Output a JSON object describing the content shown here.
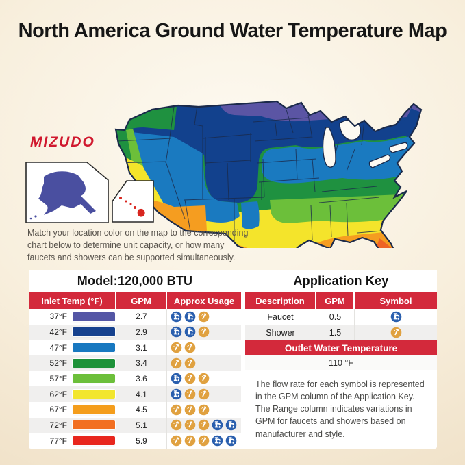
{
  "title": "North America Ground Water Temperature Map",
  "brand": {
    "name": "MIZUDO",
    "color": "#d0182e"
  },
  "map": {
    "caption": "Match your location color on the map to the corresponding chart below to determine unit capacity, or how many faucets and showers can be supported simultaneously.",
    "band_colors": [
      "#5b55a4",
      "#12418d",
      "#1a7ac0",
      "#1f9140",
      "#6cbf3a",
      "#f4e42b",
      "#f59d20",
      "#e8311f"
    ],
    "inset_alaska_color": "#4a4fa0",
    "inset_hawaii_color": "#d8261f"
  },
  "capacity_table": {
    "title": "Model:120,000 BTU",
    "headers": [
      "Inlet Temp (°F)",
      "GPM",
      "Approx Usage"
    ],
    "rows": [
      {
        "inlet_temp": "37°F",
        "swatch_color": "#5456a5",
        "gpm": "2.7",
        "usage": [
          "faucet",
          "faucet",
          "shower"
        ]
      },
      {
        "inlet_temp": "42°F",
        "swatch_color": "#16418e",
        "gpm": "2.9",
        "usage": [
          "faucet",
          "faucet",
          "shower"
        ]
      },
      {
        "inlet_temp": "47°F",
        "swatch_color": "#1878c0",
        "gpm": "3.1",
        "usage": [
          "shower",
          "shower"
        ]
      },
      {
        "inlet_temp": "52°F",
        "swatch_color": "#1e9239",
        "gpm": "3.4",
        "usage": [
          "shower",
          "shower"
        ]
      },
      {
        "inlet_temp": "57°F",
        "swatch_color": "#6cbf3a",
        "gpm": "3.6",
        "usage": [
          "faucet",
          "shower",
          "shower"
        ]
      },
      {
        "inlet_temp": "62°F",
        "swatch_color": "#f2e62e",
        "gpm": "4.1",
        "usage": [
          "faucet",
          "shower",
          "shower"
        ]
      },
      {
        "inlet_temp": "67°F",
        "swatch_color": "#f49d1c",
        "gpm": "4.5",
        "usage": [
          "shower",
          "shower",
          "shower"
        ]
      },
      {
        "inlet_temp": "72°F",
        "swatch_color": "#f26f21",
        "gpm": "5.1",
        "usage": [
          "shower",
          "shower",
          "shower",
          "faucet",
          "faucet"
        ]
      },
      {
        "inlet_temp": "77°F",
        "swatch_color": "#e8261d",
        "gpm": "5.9",
        "usage": [
          "shower",
          "shower",
          "shower",
          "faucet",
          "faucet"
        ]
      }
    ]
  },
  "application_key": {
    "title": "Application Key",
    "headers": [
      "Description",
      "GPM",
      "Symbol"
    ],
    "rows": [
      {
        "description": "Faucet",
        "gpm": "0.5",
        "symbol": "faucet"
      },
      {
        "description": "Shower",
        "gpm": "1.5",
        "symbol": "shower"
      }
    ],
    "outlet_banner": "Outlet Water Temperature",
    "outlet_value": "110 °F",
    "note_lines": [
      "The flow rate for each symbol is represented in the GPM column of the Application Key.",
      "The Range column indicates variations in GPM for faucets and showers based on manufacturer and style."
    ]
  },
  "icons": {
    "faucet_bg": "#2a5fae",
    "shower_bg": "#e0a140"
  }
}
